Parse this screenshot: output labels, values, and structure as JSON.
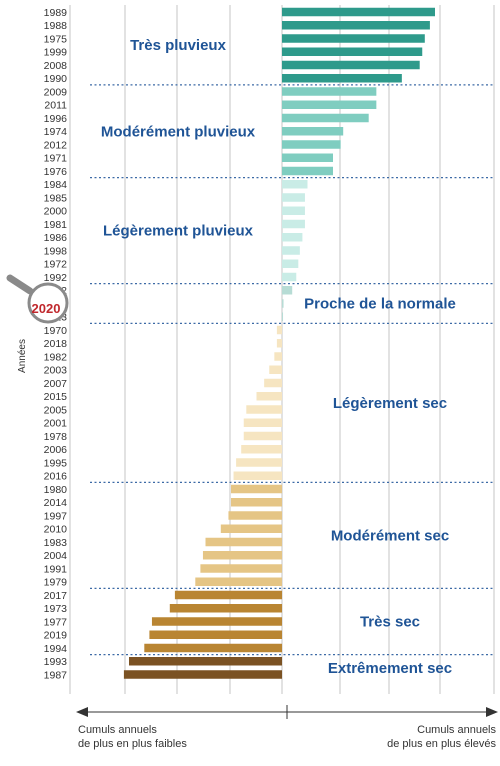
{
  "chart_data": {
    "type": "bar",
    "orientation": "horizontal",
    "ylabel": "Années",
    "x_left_caption": [
      "Cumuls annuels",
      "de plus en plus faibles"
    ],
    "x_right_caption": [
      "Cumuls annuels",
      "de plus en plus élevés"
    ],
    "highlight_year": "2020",
    "grid": true,
    "xlim": [
      -32,
      42
    ],
    "categories": [
      {
        "label": "Très pluvieux",
        "color": "#2e9a8b",
        "years": [
          "1989",
          "1988",
          "1975",
          "1999",
          "2008",
          "1990"
        ],
        "values": [
          30,
          29,
          28,
          27.5,
          27,
          23.5
        ]
      },
      {
        "label": "Modérément pluvieux",
        "color": "#7fcdc0",
        "years": [
          "2009",
          "2011",
          "1996",
          "1974",
          "2012",
          "1971",
          "1976"
        ],
        "values": [
          18.5,
          18.5,
          17,
          12,
          11.5,
          10,
          10
        ]
      },
      {
        "label": "Légèrement pluvieux",
        "color": "#c9ece6",
        "years": [
          "1984",
          "1985",
          "2000",
          "1981",
          "1986",
          "1998",
          "1972",
          "1992"
        ],
        "values": [
          5,
          4.5,
          4.5,
          4.5,
          4,
          3.5,
          3.2,
          2.8
        ]
      },
      {
        "label": "Proche de la normale",
        "color": "#b7dcd5",
        "years": [
          "2002",
          "2020",
          "2013"
        ],
        "values": [
          2,
          0.3,
          0.2
        ]
      },
      {
        "label": "Légèrement sec",
        "color": "#f6e5c1",
        "years": [
          "1970",
          "2018",
          "1982",
          "2003",
          "2007",
          "2015",
          "2005",
          "2001",
          "1978",
          "2006",
          "1995",
          "2016"
        ],
        "values": [
          -1,
          -1,
          -1.5,
          -2.5,
          -3.5,
          -5,
          -7,
          -7.5,
          -7.5,
          -8,
          -9,
          -9.5
        ]
      },
      {
        "label": "Modérément sec",
        "color": "#e5c585",
        "years": [
          "1980",
          "2014",
          "1997",
          "2010",
          "1983",
          "2004",
          "1991",
          "1979"
        ],
        "values": [
          -10,
          -10,
          -10.5,
          -12,
          -15,
          -15.5,
          -16,
          -17
        ]
      },
      {
        "label": "Très sec",
        "color": "#b98532",
        "years": [
          "2017",
          "1973",
          "1977",
          "2019",
          "1994"
        ],
        "values": [
          -21,
          -22,
          -25.5,
          -26,
          -27
        ]
      },
      {
        "label": "Extrêmement sec",
        "color": "#7b5223",
        "years": [
          "1993",
          "1987"
        ],
        "values": [
          -30,
          -31
        ]
      }
    ]
  }
}
